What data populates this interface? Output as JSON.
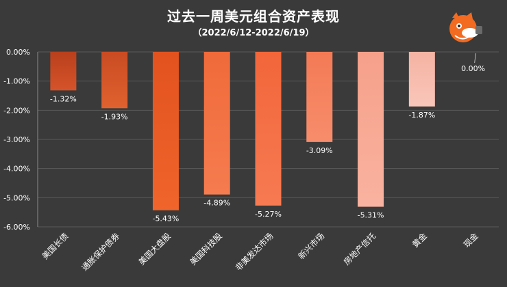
{
  "chart_data": {
    "type": "bar",
    "title": "过去一周美元组合资产表现",
    "subtitle": "（2022/6/12-2022/6/19）",
    "categories": [
      "美国长债",
      "通胀保护债券",
      "美国大盘股",
      "美国科技股",
      "非美发达市场",
      "新兴市场",
      "房地产信托",
      "黄金",
      "现金"
    ],
    "values": [
      -1.32,
      -1.93,
      -5.43,
      -4.89,
      -5.27,
      -3.09,
      -5.31,
      -1.87,
      0.0
    ],
    "data_labels": [
      "-1.32%",
      "-1.93%",
      "-5.43%",
      "-4.89%",
      "-5.27%",
      "-3.09%",
      "-5.31%",
      "-1.87%",
      "0.00%"
    ],
    "ylim": [
      -6,
      0
    ],
    "yticks": [
      0,
      -1,
      -2,
      -3,
      -4,
      -5,
      -6
    ],
    "ytick_labels": [
      "0.00%",
      "-1.00%",
      "-2.00%",
      "-3.00%",
      "-4.00%",
      "-5.00%",
      "-6.00%"
    ],
    "xlabel": "",
    "ylabel": "",
    "grid": true,
    "legend": "none",
    "bar_colors": [
      [
        "#b8401c",
        "#d6532a"
      ],
      [
        "#c94b22",
        "#e0622f"
      ],
      [
        "#e2521f",
        "#f0652b"
      ],
      [
        "#f06a3a",
        "#f57c4f"
      ],
      [
        "#f2663a",
        "#f77a52"
      ],
      [
        "#f47a55",
        "#f78d6c"
      ],
      [
        "#f6a08a",
        "#f9b3a0"
      ],
      [
        "#f5b3a3",
        "#f9c6b9"
      ],
      [
        "#f7c7bb",
        "#fad6cd"
      ]
    ]
  },
  "colors": {
    "background": "#3a3a3a",
    "gridline": "#5a5a5a",
    "axis": "#8a8a8a",
    "text": "#ffffff"
  },
  "logo": {
    "icon": "orange-cartoon-animal-logo"
  }
}
